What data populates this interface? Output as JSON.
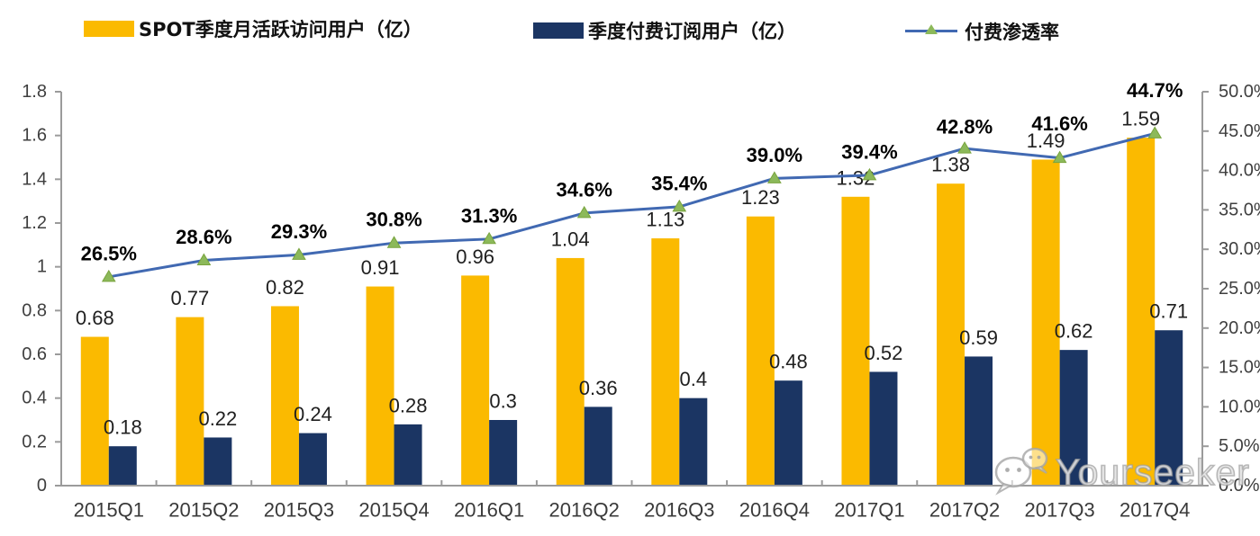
{
  "legend": {
    "items": [
      {
        "label": "SPOT季度月活跃访问用户（亿）",
        "color": "#FBBA00",
        "type": "bar"
      },
      {
        "label": "季度付费订阅用户（亿）",
        "color": "#1B3563",
        "type": "bar"
      },
      {
        "label": "付费渗透率",
        "color": "#4169B2",
        "marker_color": "#8CB95A",
        "type": "line"
      }
    ]
  },
  "watermark": {
    "text": "Yourseeker",
    "icon": "wechat-bubbles-icon"
  },
  "chart_data": {
    "type": "bar+line combo",
    "categories": [
      "2015Q1",
      "2015Q2",
      "2015Q3",
      "2015Q4",
      "2016Q1",
      "2016Q2",
      "2016Q3",
      "2016Q4",
      "2017Q1",
      "2017Q2",
      "2017Q3",
      "2017Q4"
    ],
    "series": [
      {
        "name": "SPOT季度月活跃访问用户（亿）",
        "type": "bar",
        "axis": "left",
        "color": "#FBBA00",
        "values": [
          0.68,
          0.77,
          0.82,
          0.91,
          0.96,
          1.04,
          1.13,
          1.23,
          1.32,
          1.38,
          1.49,
          1.59
        ],
        "labels": [
          "0.68",
          "0.77",
          "0.82",
          "0.91",
          "0.96",
          "1.04",
          "1.13",
          "1.23",
          "1.32",
          "1.38",
          "1.49",
          "1.59"
        ]
      },
      {
        "name": "季度付费订阅用户（亿）",
        "type": "bar",
        "axis": "left",
        "color": "#1B3563",
        "values": [
          0.18,
          0.22,
          0.24,
          0.28,
          0.3,
          0.36,
          0.4,
          0.48,
          0.52,
          0.59,
          0.62,
          0.71
        ],
        "labels": [
          "0.18",
          "0.22",
          "0.24",
          "0.28",
          "0.3",
          "0.36",
          "0.4",
          "0.48",
          "0.52",
          "0.59",
          "0.62",
          "0.71"
        ]
      },
      {
        "name": "付费渗透率",
        "type": "line",
        "axis": "right",
        "color": "#4169B2",
        "marker_color": "#8CB95A",
        "marker_edge_color": "#79A43E",
        "values": [
          26.5,
          28.6,
          29.3,
          30.8,
          31.3,
          34.6,
          35.4,
          39.0,
          39.4,
          42.8,
          41.6,
          44.7
        ],
        "labels": [
          "26.5%",
          "28.6%",
          "29.3%",
          "30.8%",
          "31.3%",
          "34.6%",
          "35.4%",
          "39.0%",
          "39.4%",
          "42.8%",
          "41.6%",
          "44.7%"
        ]
      }
    ],
    "left_axis": {
      "min": 0,
      "max": 1.8,
      "ticks": [
        "1.8",
        "1.6",
        "1.4",
        "1.2",
        "1",
        "0.8",
        "0.6",
        "0.4",
        "0.2",
        "0"
      ]
    },
    "right_axis": {
      "min": 0,
      "max": 50,
      "ticks": [
        "50.0%",
        "45.0%",
        "40.0%",
        "35.0%",
        "30.0%",
        "25.0%",
        "20.0%",
        "15.0%",
        "10.0%",
        "5.0%",
        "0.0%"
      ]
    },
    "layout_hints": {
      "grid": "off",
      "legend_position": "top",
      "pct_label_dy": [
        26,
        26,
        26,
        26,
        26,
        26,
        26,
        26,
        26,
        24,
        38,
        48
      ],
      "bar_label_dy": 21
    }
  }
}
